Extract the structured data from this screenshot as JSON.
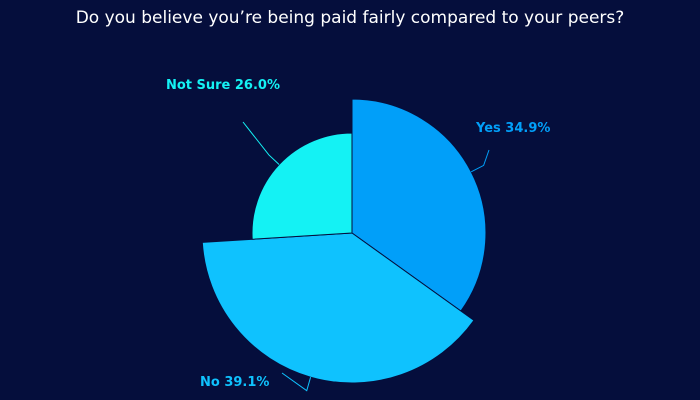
{
  "chart_data": {
    "type": "pie",
    "title": "Do you believe you’re being paid fairly compared to your peers?",
    "slices": [
      {
        "label": "Yes",
        "value": 34.9,
        "display": "Yes 34.9%",
        "color": "#019ff9"
      },
      {
        "label": "No",
        "value": 39.1,
        "display": "No 39.1%",
        "color": "#0fc2fe"
      },
      {
        "label": "Not Sure",
        "value": 26.0,
        "display": "Not Sure 26.0%",
        "color": "#14f2f4"
      }
    ],
    "legend": "none",
    "rose_style": true
  }
}
